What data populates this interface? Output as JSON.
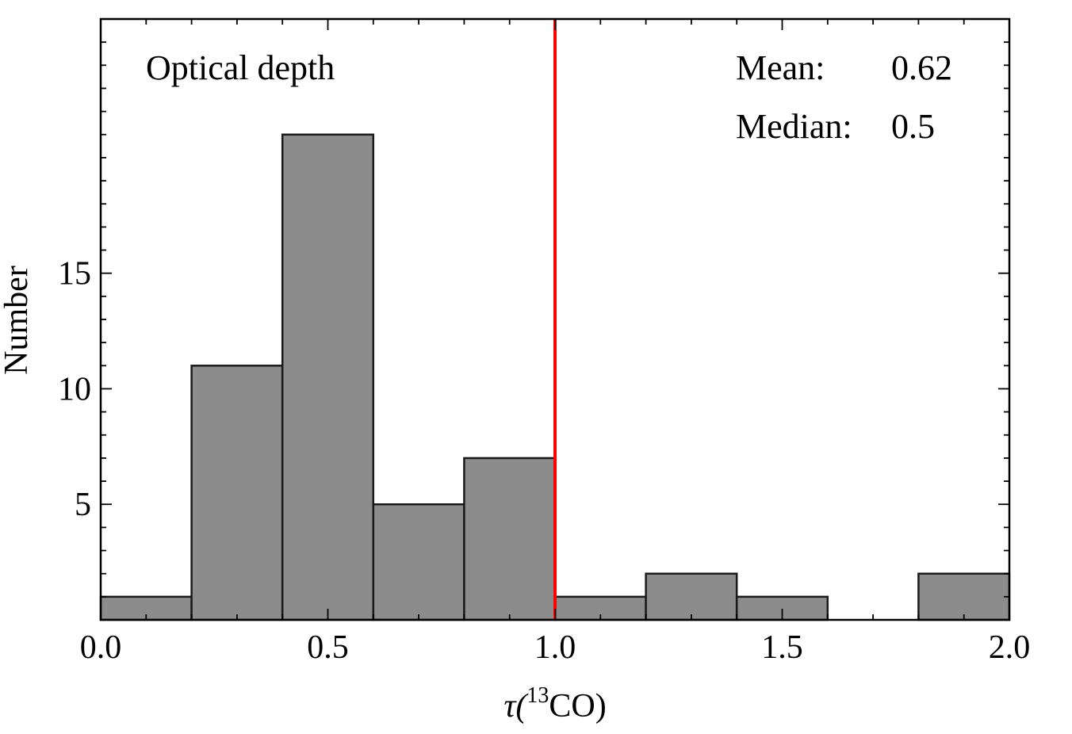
{
  "chart_data": {
    "type": "bar",
    "title": "",
    "annotation": "Optical depth",
    "stats": [
      {
        "label": "Mean:",
        "value": "0.62"
      },
      {
        "label": "Median:",
        "value": "0.5"
      }
    ],
    "xlabel_main": "τ(",
    "xlabel_sup": "13",
    "xlabel_rest": "CO)",
    "ylabel": "Number",
    "xlim": [
      0,
      2
    ],
    "ylim": [
      0,
      26
    ],
    "bin_edges": [
      0.0,
      0.2,
      0.4,
      0.6,
      0.8,
      1.0,
      1.2,
      1.4,
      1.6,
      1.8,
      2.0
    ],
    "values": [
      1,
      11,
      21,
      5,
      7,
      1,
      2,
      1,
      0,
      2
    ],
    "x_ticks": [
      0.0,
      0.5,
      1.0,
      1.5,
      2.0
    ],
    "x_tick_labels": [
      "0.0",
      "0.5",
      "1.0",
      "1.5",
      "2.0"
    ],
    "y_ticks": [
      5,
      10,
      15
    ],
    "y_tick_labels": [
      "5",
      "10",
      "15"
    ],
    "vline_x": 1.0,
    "colors": {
      "bar_fill": "#8c8c8c",
      "bar_edge": "#1a1a1a",
      "vline": "#ff0000"
    }
  }
}
